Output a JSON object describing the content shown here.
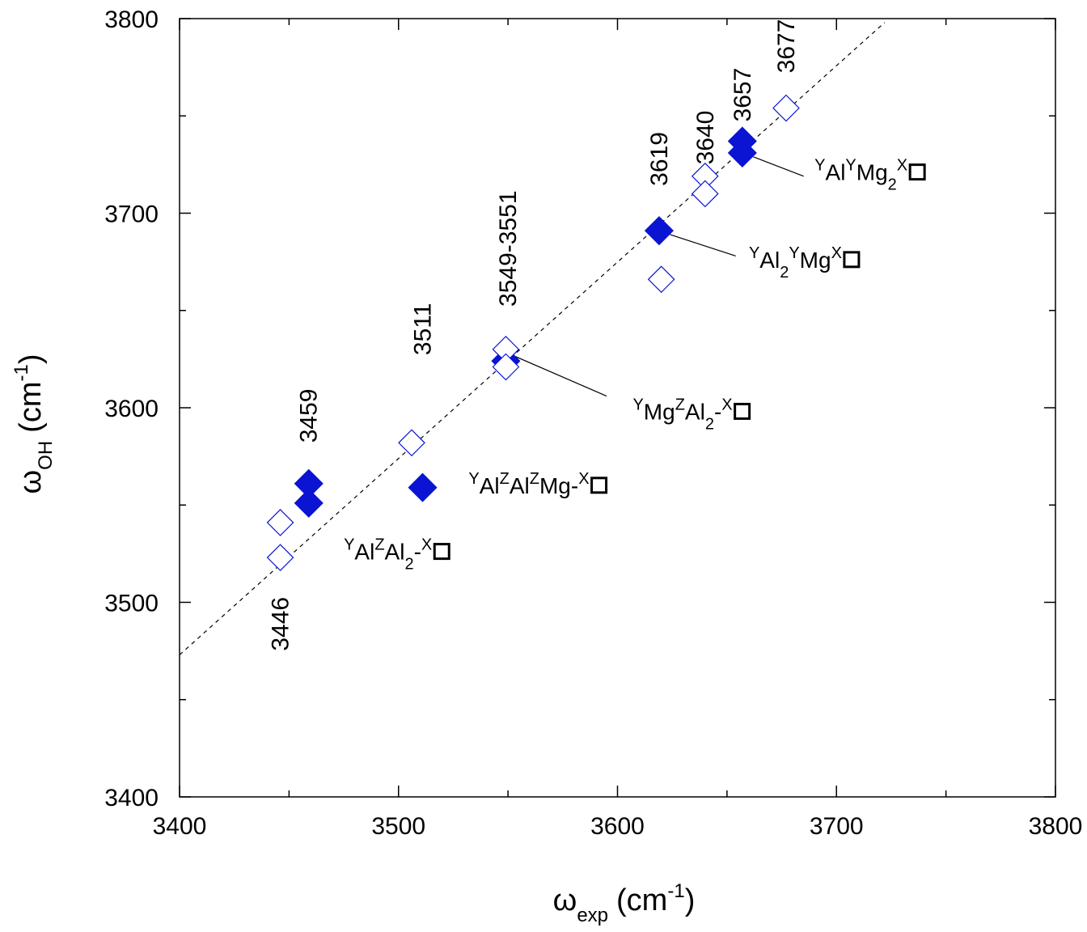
{
  "chart_data": {
    "type": "scatter",
    "xlabel": {
      "symbol": "ω",
      "sub": "exp",
      "unit": "(cm",
      "exp": "-1",
      "close": ")"
    },
    "ylabel": {
      "symbol": "ω",
      "sub": "OH",
      "unit": "(cm",
      "exp": "-1",
      "close": ")"
    },
    "xlim": [
      3400,
      3800
    ],
    "ylim": [
      3400,
      3800
    ],
    "x_major_ticks": [
      3400,
      3500,
      3600,
      3700,
      3800
    ],
    "y_major_ticks": [
      3400,
      3500,
      3600,
      3700,
      3800
    ],
    "x_minor_ticks": [
      3450,
      3550,
      3650,
      3750
    ],
    "y_minor_ticks": [
      3450,
      3550,
      3650,
      3750
    ],
    "x_tick_labels": [
      "3400",
      "3500",
      "3600",
      "3700",
      "3800"
    ],
    "y_tick_labels": [
      "3400",
      "3500",
      "3600",
      "3700",
      "3800"
    ],
    "grid": false,
    "reference_line": {
      "style": "dashed",
      "from": [
        3400,
        3473
      ],
      "to": [
        3722,
        3798
      ]
    },
    "colors": {
      "marker": "#0a14d2",
      "axis": "#000000",
      "reference_line": "#000000"
    },
    "series": [
      {
        "marker": "diamond-filled",
        "points": [
          [
            3459,
            3561
          ],
          [
            3459,
            3551
          ],
          [
            3511,
            3559
          ],
          [
            3549,
            3624
          ],
          [
            3619,
            3691
          ],
          [
            3657,
            3737
          ],
          [
            3657,
            3731
          ]
        ]
      },
      {
        "marker": "diamond-open",
        "points": [
          [
            3446,
            3541
          ],
          [
            3446,
            3523
          ],
          [
            3506,
            3582
          ],
          [
            3549,
            3630
          ],
          [
            3549,
            3621
          ],
          [
            3620,
            3666
          ],
          [
            3640,
            3719
          ],
          [
            3640,
            3710
          ],
          [
            3677,
            3754
          ]
        ]
      }
    ],
    "peak_labels": [
      {
        "text": "3446",
        "x": 3446,
        "y": 3475
      },
      {
        "text": "3459",
        "x": 3459,
        "y": 3582
      },
      {
        "text": "3511",
        "x": 3511,
        "y": 3627
      },
      {
        "text": "3549-3551",
        "x": 3550,
        "y": 3652
      },
      {
        "text": "3619",
        "x": 3619,
        "y": 3714
      },
      {
        "text": "3640",
        "x": 3640,
        "y": 3725
      },
      {
        "text": "3657",
        "x": 3657,
        "y": 3747
      },
      {
        "text": "3677",
        "x": 3677,
        "y": 3772
      }
    ],
    "assignments": [
      {
        "parts": [
          [
            "sup",
            "Y"
          ],
          [
            "n",
            "Al"
          ],
          [
            "sup",
            "Z"
          ],
          [
            "n",
            "Al"
          ],
          [
            "sub",
            "2"
          ],
          [
            "n",
            "-"
          ],
          [
            "sup",
            "X"
          ]
        ],
        "x": 3475,
        "y": 3522,
        "vacancy": true
      },
      {
        "parts": [
          [
            "sup",
            "Y"
          ],
          [
            "n",
            "Al"
          ],
          [
            "sup",
            "Z"
          ],
          [
            "n",
            "Al"
          ],
          [
            "sup",
            "Z"
          ],
          [
            "n",
            "Mg-"
          ],
          [
            "sup",
            "X"
          ]
        ],
        "x": 3532,
        "y": 3556,
        "vacancy": true
      },
      {
        "parts": [
          [
            "sup",
            "Y"
          ],
          [
            "n",
            "Mg"
          ],
          [
            "sup",
            "Z"
          ],
          [
            "n",
            "Al"
          ],
          [
            "sub",
            "2"
          ],
          [
            "n",
            "-"
          ],
          [
            "sup",
            "X"
          ]
        ],
        "x": 3607,
        "y": 3594,
        "vacancy": true,
        "leader": [
          [
            3552,
            3627
          ],
          [
            3595,
            3606
          ]
        ]
      },
      {
        "parts": [
          [
            "sup",
            "Y"
          ],
          [
            "n",
            "Al"
          ],
          [
            "sub",
            "2"
          ],
          [
            "sup",
            "Y"
          ],
          [
            "n",
            "Mg"
          ],
          [
            "sup",
            "X"
          ]
        ],
        "x": 3660,
        "y": 3672,
        "vacancy": true,
        "leader": [
          [
            3624,
            3689
          ],
          [
            3654,
            3678
          ]
        ]
      },
      {
        "parts": [
          [
            "sup",
            "Y"
          ],
          [
            "n",
            "Al"
          ],
          [
            "sup",
            "Y"
          ],
          [
            "n",
            "Mg"
          ],
          [
            "sub",
            "2"
          ],
          [
            "sup",
            "X"
          ]
        ],
        "x": 3690,
        "y": 3717,
        "vacancy": true,
        "leader": [
          [
            3662,
            3729
          ],
          [
            3685,
            3719
          ]
        ]
      }
    ]
  }
}
